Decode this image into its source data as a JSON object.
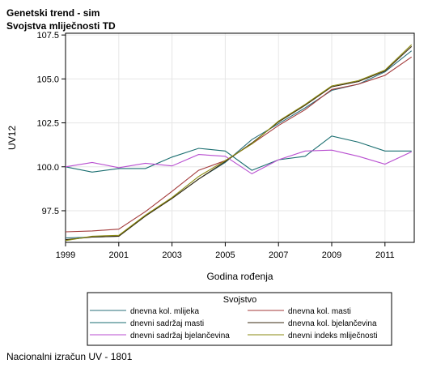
{
  "title_line1": "Genetski trend - sim",
  "title_line2": "Svojstva mliječnosti TD",
  "footnote": "Nacionalni izračun UV - 1801",
  "chart_data": {
    "type": "line",
    "xlabel": "Godina rođenja",
    "ylabel": "UV12",
    "xlim": [
      1999,
      2012.1
    ],
    "ylim": [
      95.7,
      107.6
    ],
    "x_ticks": [
      1999,
      2001,
      2003,
      2005,
      2007,
      2009,
      2011
    ],
    "y_ticks": [
      97.5,
      100.0,
      102.5,
      105.0,
      107.5
    ],
    "grid": true,
    "legend_title": "Svojstvo",
    "legend_position": "bottom",
    "x": [
      1999,
      2000,
      2001,
      2002,
      2003,
      2004,
      2005,
      2006,
      2007,
      2008,
      2009,
      2010,
      2011,
      2012
    ],
    "series": [
      {
        "name": "dnevna kol. mlijeka",
        "color": "#2a6f7a",
        "values": [
          95.95,
          96.0,
          96.05,
          97.2,
          98.2,
          99.3,
          100.25,
          101.55,
          102.45,
          103.35,
          104.35,
          104.7,
          105.4,
          106.6
        ]
      },
      {
        "name": "dnevna kol. masti",
        "color": "#a33a3a",
        "values": [
          96.3,
          96.35,
          96.45,
          97.45,
          98.6,
          99.8,
          100.35,
          101.3,
          102.35,
          103.25,
          104.4,
          104.7,
          105.2,
          106.25
        ]
      },
      {
        "name": "dnevni sadržaj masti",
        "color": "#1a6e70",
        "values": [
          100.0,
          99.7,
          99.9,
          99.9,
          100.55,
          101.05,
          100.9,
          99.8,
          100.4,
          100.6,
          101.75,
          101.4,
          100.9,
          100.9
        ]
      },
      {
        "name": "dnevna kol. bjelančevina",
        "color": "#3a2a10",
        "values": [
          95.85,
          96.0,
          96.05,
          97.2,
          98.2,
          99.3,
          100.3,
          101.35,
          102.55,
          103.5,
          104.55,
          104.85,
          105.45,
          106.85
        ]
      },
      {
        "name": "dnevni sadržaj bjelančevina",
        "color": "#b84ed0",
        "values": [
          100.0,
          100.25,
          99.95,
          100.2,
          100.05,
          100.7,
          100.6,
          99.6,
          100.4,
          100.9,
          100.95,
          100.6,
          100.15,
          100.85
        ]
      },
      {
        "name": "dnevni indeks mliječnosti",
        "color": "#8a8a10",
        "values": [
          95.8,
          96.05,
          96.1,
          97.25,
          98.25,
          99.45,
          100.35,
          101.3,
          102.6,
          103.55,
          104.6,
          104.9,
          105.5,
          106.95
        ]
      }
    ]
  }
}
